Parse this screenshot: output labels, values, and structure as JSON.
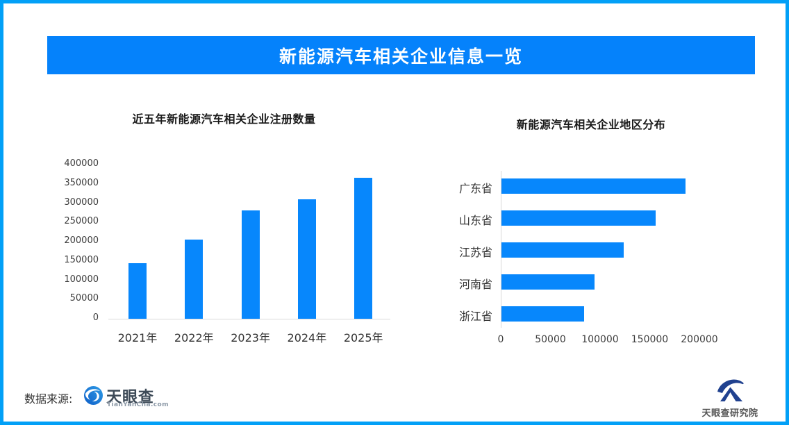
{
  "banner": {
    "title": "新能源汽车相关企业信息一览",
    "bg_color": "#0582FB",
    "text_color": "#FFFFFF"
  },
  "colors": {
    "frame_border": "#02A0F7",
    "bar_blue": "#0787FC",
    "axis_gray": "#D9D9D9"
  },
  "chart_data": [
    {
      "type": "bar",
      "title": "近五年新能源汽车相关企业注册数量",
      "categories": [
        "2021年",
        "2022年",
        "2023年",
        "2024年",
        "2025年"
      ],
      "values": [
        145000,
        205000,
        281000,
        310000,
        366000
      ],
      "xlabel": "",
      "ylabel": "",
      "ylim": [
        0,
        400000
      ],
      "yticks": [
        0,
        50000,
        100000,
        150000,
        200000,
        250000,
        300000,
        350000,
        400000
      ],
      "grid": false,
      "bar_color": "#0787FC"
    },
    {
      "type": "bar-horizontal",
      "title": "新能源汽车相关企业地区分布",
      "categories": [
        "广东省",
        "山东省",
        "江苏省",
        "河南省",
        "浙江省"
      ],
      "values": [
        185000,
        155000,
        123000,
        94000,
        83000
      ],
      "xlabel": "",
      "ylabel": "",
      "xlim": [
        0,
        250000
      ],
      "xticks": [
        0,
        50000,
        100000,
        150000,
        200000
      ],
      "grid": false,
      "bar_color": "#0787FC"
    }
  ],
  "footer": {
    "source_label": "数据来源:",
    "logo_text": "天眼查",
    "logo_subtext": "TianYanCha.com",
    "research_logo_text": "天眼查研究院"
  },
  "icons": {
    "tianyancha": "eye-swirl-icon",
    "research_institute": "mountain-swoosh-icon"
  }
}
